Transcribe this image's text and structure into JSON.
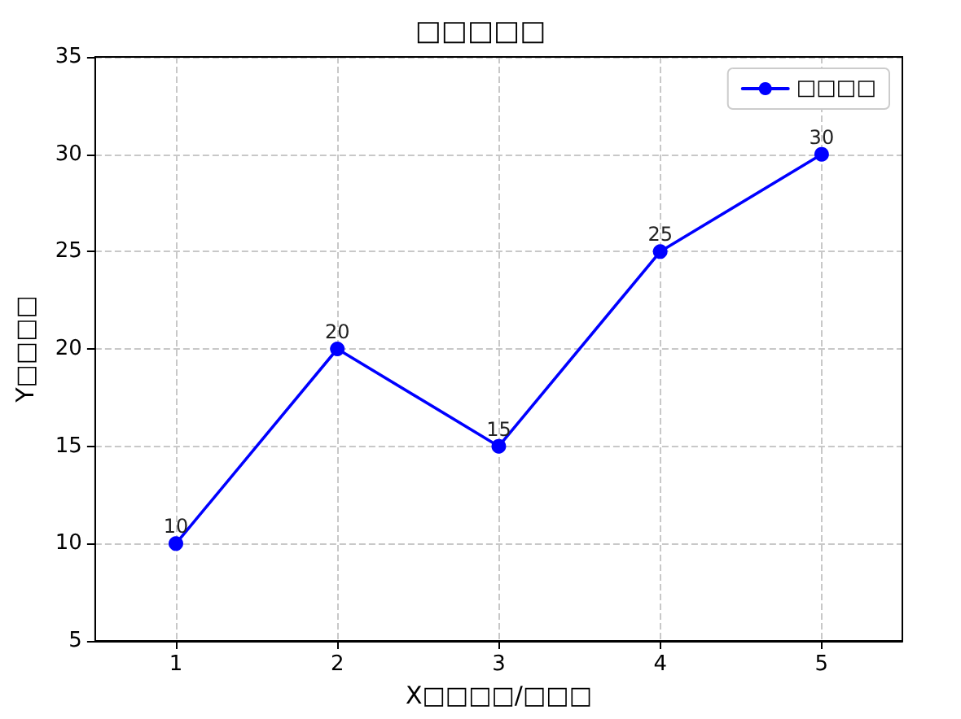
{
  "chart_data": {
    "type": "line",
    "title": "□□□□□",
    "xlabel": "X□□□□/□□□",
    "ylabel": "Y□□□□",
    "x": [
      1,
      2,
      3,
      4,
      5
    ],
    "series": [
      {
        "name": "□□□□",
        "color": "#0000ff",
        "values": [
          10,
          20,
          15,
          25,
          30
        ]
      }
    ],
    "xlim": [
      0.5,
      5.5
    ],
    "xticks": [
      1,
      2,
      3,
      4,
      5
    ],
    "ylim": [
      5,
      35
    ],
    "yticks": [
      5,
      10,
      15,
      20,
      25,
      30,
      35
    ],
    "grid": true,
    "legend": "top right",
    "marker": "circle",
    "line_style": "solid",
    "data_labels": true
  }
}
